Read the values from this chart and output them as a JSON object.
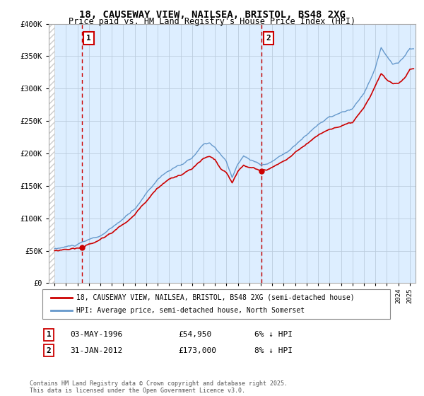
{
  "title": "18, CAUSEWAY VIEW, NAILSEA, BRISTOL, BS48 2XG",
  "subtitle": "Price paid vs. HM Land Registry's House Price Index (HPI)",
  "ylim": [
    0,
    400000
  ],
  "yticks": [
    0,
    50000,
    100000,
    150000,
    200000,
    250000,
    300000,
    350000,
    400000
  ],
  "sale1_date": 1996.37,
  "sale1_price": 54950,
  "sale1_label": "1",
  "sale1_text": "03-MAY-1996",
  "sale1_price_text": "£54,950",
  "sale1_note": "6% ↓ HPI",
  "sale2_date": 2012.08,
  "sale2_price": 173000,
  "sale2_label": "2",
  "sale2_text": "31-JAN-2012",
  "sale2_price_text": "£173,000",
  "sale2_note": "8% ↓ HPI",
  "legend_line1": "18, CAUSEWAY VIEW, NAILSEA, BRISTOL, BS48 2XG (semi-detached house)",
  "legend_line2": "HPI: Average price, semi-detached house, North Somerset",
  "footnote": "Contains HM Land Registry data © Crown copyright and database right 2025.\nThis data is licensed under the Open Government Licence v3.0.",
  "line_color_red": "#cc0000",
  "line_color_blue": "#6699cc",
  "bg_color": "#ddeeff",
  "grid_color": "#bbccdd",
  "annotation_box_color": "#cc0000",
  "xmin": 1994.0,
  "xmax": 2025.5
}
